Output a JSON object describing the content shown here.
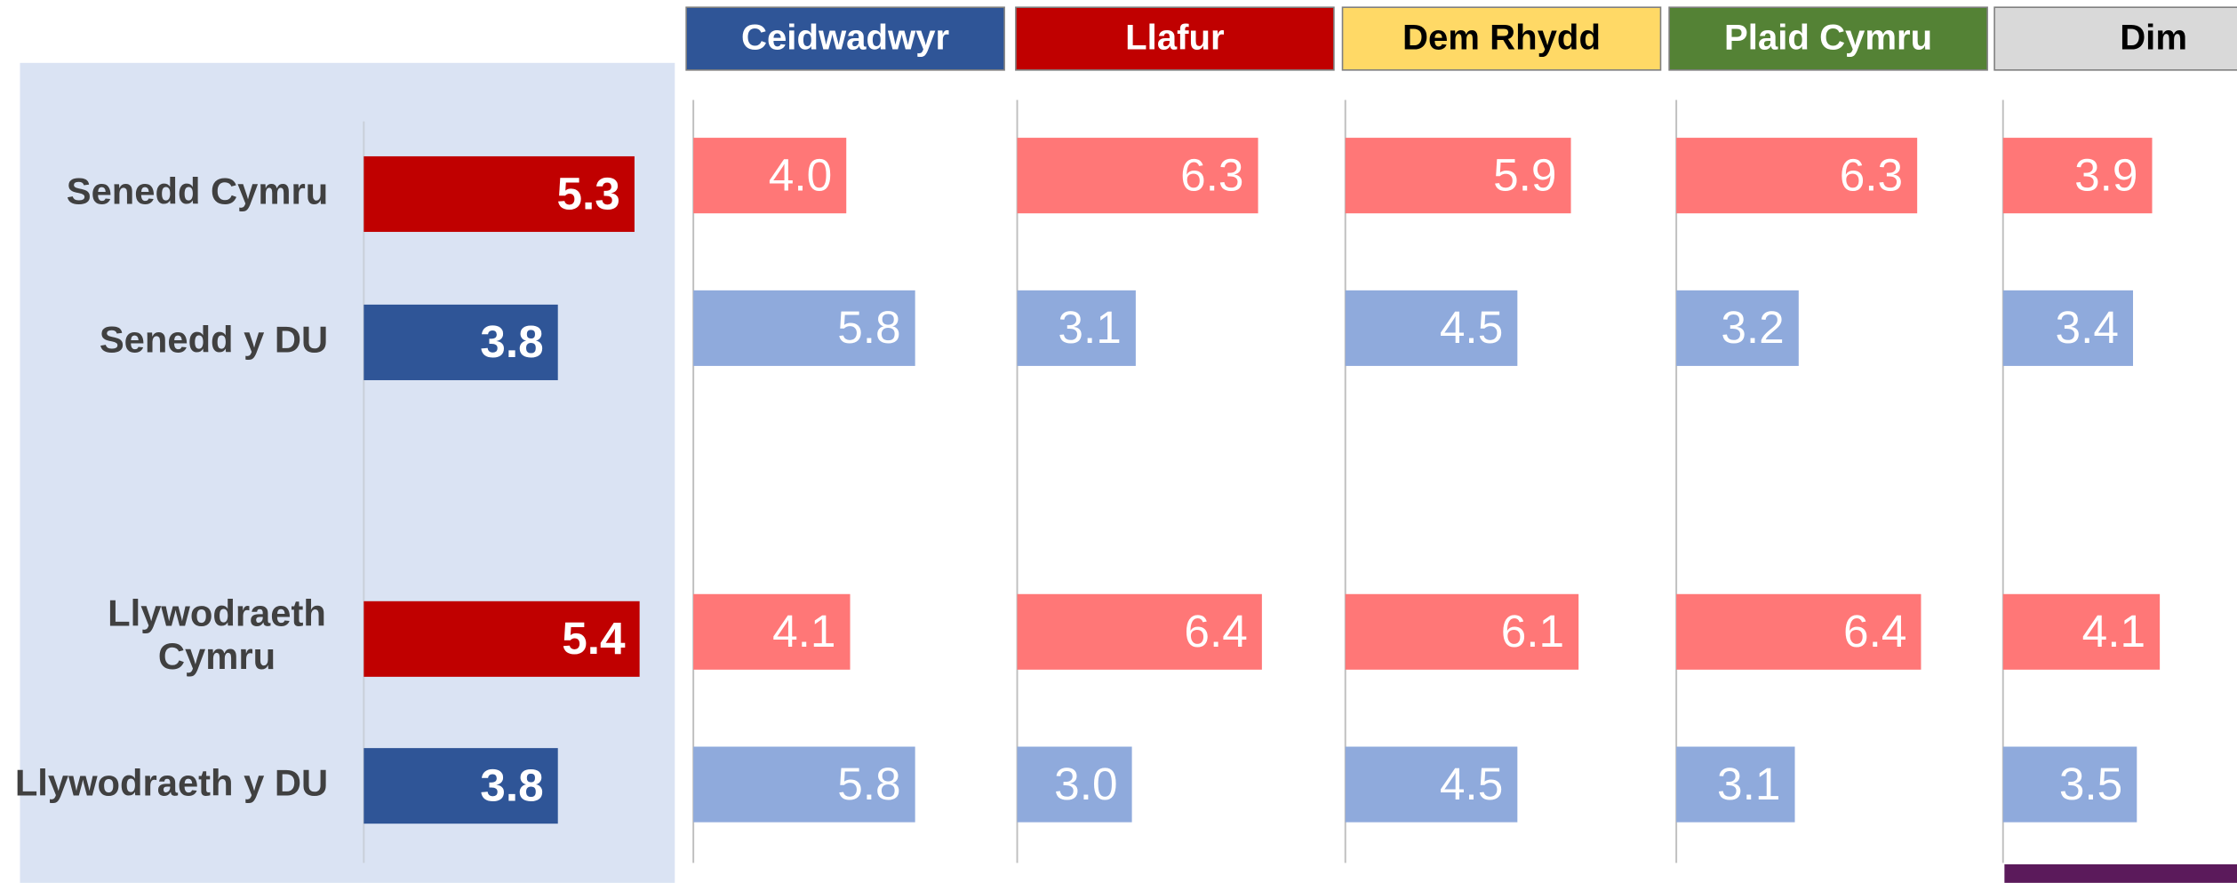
{
  "chart_data": [
    {
      "type": "bar",
      "orientation": "horizontal",
      "categories": [
        "Senedd Cymru",
        "Senedd y DU",
        "Llywodraeth Cymru",
        "Llywodraeth y DU"
      ],
      "values": [
        5.3,
        3.8,
        5.4,
        3.8
      ],
      "colors": [
        "#c00000",
        "#2f5597",
        "#c00000",
        "#2f5597"
      ],
      "xlim": [
        0,
        6
      ],
      "background": "#dae3f3"
    },
    {
      "type": "bar",
      "orientation": "horizontal",
      "title": "Ceidwadwyr",
      "title_color": "#2f5597",
      "title_text_color": "#ffffff",
      "values": [
        4.0,
        5.8,
        4.1,
        5.8
      ],
      "value_labels": [
        "4.0",
        "5.8",
        "4.1",
        "5.8"
      ],
      "colors": [
        "#ff7777",
        "#8faadc",
        "#ff7777",
        "#8faadc"
      ],
      "xlim": [
        0,
        8
      ]
    },
    {
      "type": "bar",
      "orientation": "horizontal",
      "title": "Llafur",
      "title_color": "#c00000",
      "title_text_color": "#ffffff",
      "values": [
        6.3,
        3.1,
        6.4,
        3.0
      ],
      "value_labels": [
        "6.3",
        "3.1",
        "6.4",
        "3.0"
      ],
      "colors": [
        "#ff7777",
        "#8faadc",
        "#ff7777",
        "#8faadc"
      ],
      "xlim": [
        0,
        8
      ]
    },
    {
      "type": "bar",
      "orientation": "horizontal",
      "title": "Dem Rhydd",
      "title_color": "#ffd966",
      "title_text_color": "#000000",
      "values": [
        5.9,
        4.5,
        6.1,
        4.5
      ],
      "value_labels": [
        "5.9",
        "4.5",
        "6.1",
        "4.5"
      ],
      "colors": [
        "#ff7777",
        "#8faadc",
        "#ff7777",
        "#8faadc"
      ],
      "xlim": [
        0,
        8
      ]
    },
    {
      "type": "bar",
      "orientation": "horizontal",
      "title": "Plaid Cymru",
      "title_color": "#548235",
      "title_text_color": "#ffffff",
      "values": [
        6.3,
        3.2,
        6.4,
        3.1
      ],
      "value_labels": [
        "6.3",
        "3.2",
        "6.4",
        "3.1"
      ],
      "colors": [
        "#ff7777",
        "#8faadc",
        "#ff7777",
        "#8faadc"
      ],
      "xlim": [
        0,
        8
      ]
    },
    {
      "type": "bar",
      "orientation": "horizontal",
      "title": "Dim",
      "title_color": "#d9d9d9",
      "title_text_color": "#000000",
      "values": [
        3.9,
        3.4,
        4.1,
        3.5
      ],
      "value_labels": [
        "3.9",
        "3.4",
        "4.1",
        "3.5"
      ],
      "colors": [
        "#ff7777",
        "#8faadc",
        "#ff7777",
        "#8faadc"
      ],
      "xlim": [
        0,
        8
      ]
    }
  ]
}
